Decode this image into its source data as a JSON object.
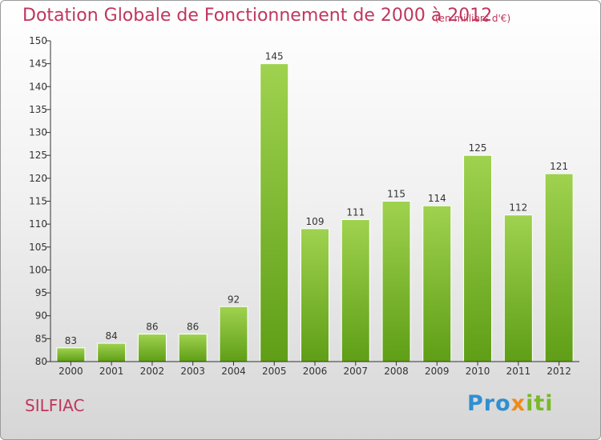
{
  "header": {
    "title": "Dotation Globale de Fonctionnement de 2000 à 2012",
    "subtitle": "(en milliers d'€)"
  },
  "footer": {
    "commune": "SILFIAC",
    "logo_parts": [
      "Pro",
      "x",
      "iti"
    ]
  },
  "colors": {
    "title": "#c0365c",
    "bar_light": "#9fd24f",
    "bar_dark": "#5f9e16",
    "logo_blue": "#2f8fd2",
    "logo_orange": "#f08a1c",
    "logo_green": "#7ab82a"
  },
  "chart_data": {
    "type": "bar",
    "title": "Dotation Globale de Fonctionnement de 2000 à 2012",
    "subtitle": "(en milliers d'€)",
    "categories": [
      "2000",
      "2001",
      "2002",
      "2003",
      "2004",
      "2005",
      "2006",
      "2007",
      "2008",
      "2009",
      "2010",
      "2011",
      "2012"
    ],
    "values": [
      83,
      84,
      86,
      86,
      92,
      145,
      109,
      111,
      115,
      114,
      125,
      112,
      121
    ],
    "ylim": [
      80,
      150
    ],
    "yticks": [
      80,
      85,
      90,
      95,
      100,
      105,
      110,
      115,
      120,
      125,
      130,
      135,
      140,
      145,
      150
    ],
    "grid": false,
    "data_labels": true
  }
}
